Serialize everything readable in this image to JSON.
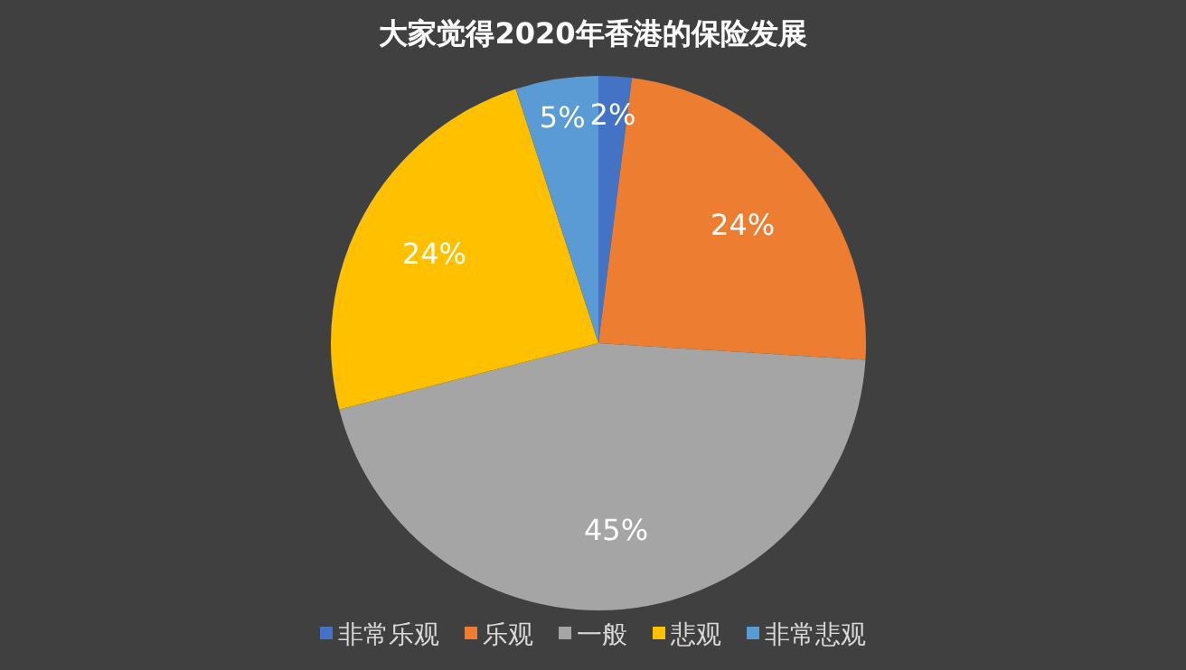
{
  "chart_data": {
    "type": "pie",
    "title": "大家觉得2020年香港的保险发展",
    "categories": [
      "非常乐观",
      "乐观",
      "一般",
      "悲观",
      "非常悲观"
    ],
    "values": [
      2,
      24,
      45,
      24,
      5
    ],
    "value_labels": [
      "2%",
      "24%",
      "45%",
      "24%",
      "5%"
    ],
    "colors": [
      "#4472c4",
      "#ed7d31",
      "#a5a5a5",
      "#ffc000",
      "#5b9bd5"
    ],
    "legend": "bottom"
  }
}
